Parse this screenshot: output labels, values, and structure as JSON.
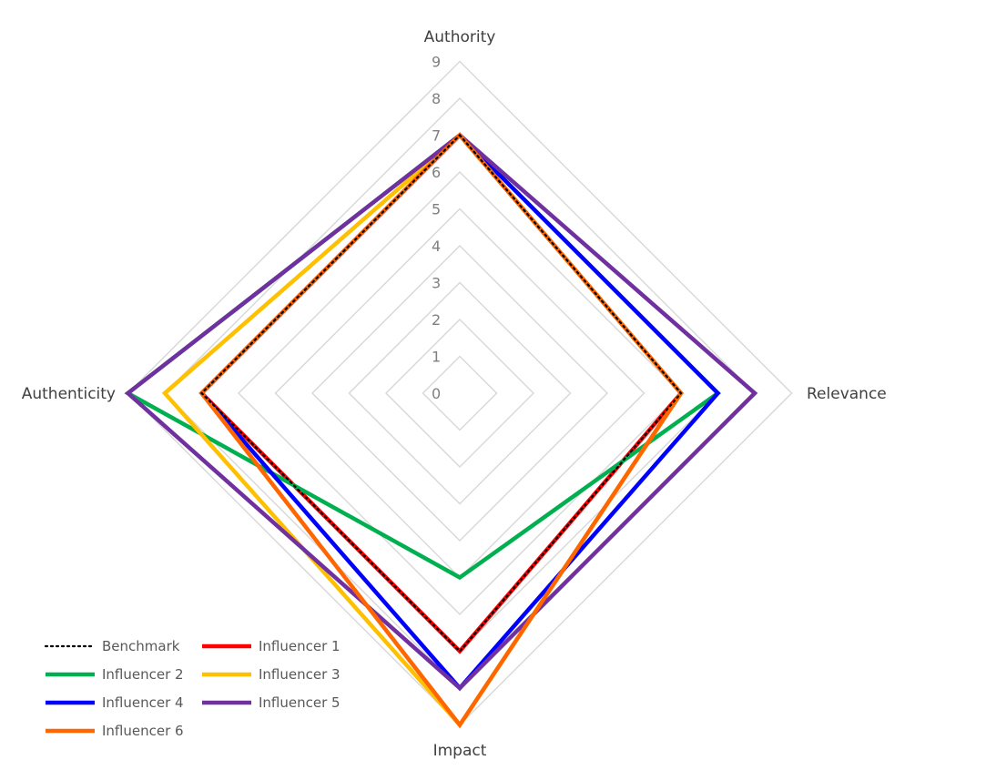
{
  "chart_data": {
    "type": "radar",
    "axes": [
      "Authority",
      "Relevance",
      "Impact",
      "Authenticity"
    ],
    "rlim": [
      0,
      9
    ],
    "ticks": [
      "0",
      "1",
      "2",
      "3",
      "4",
      "5",
      "6",
      "7",
      "8",
      "9"
    ],
    "grid": true,
    "legend_position": "bottom-left",
    "series": [
      {
        "name": "Benchmark",
        "values": [
          7,
          6,
          7,
          7
        ],
        "color": "#000000",
        "style": "dotted"
      },
      {
        "name": "Influencer 1",
        "values": [
          7,
          6,
          7,
          7
        ],
        "color": "#ff0000",
        "style": "solid"
      },
      {
        "name": "Influencer 2",
        "values": [
          7,
          7,
          5,
          9
        ],
        "color": "#00b050",
        "style": "solid"
      },
      {
        "name": "Influencer 3",
        "values": [
          7,
          6,
          9,
          8
        ],
        "color": "#ffc000",
        "style": "solid"
      },
      {
        "name": "Influencer 4",
        "values": [
          7,
          7,
          8,
          7
        ],
        "color": "#0000ff",
        "style": "solid"
      },
      {
        "name": "Influencer 5",
        "values": [
          7,
          8,
          8,
          9
        ],
        "color": "#7030a0",
        "style": "solid"
      },
      {
        "name": "Influencer 6",
        "values": [
          7,
          6,
          9,
          7
        ],
        "color": "#ff6600",
        "style": "solid"
      }
    ]
  }
}
